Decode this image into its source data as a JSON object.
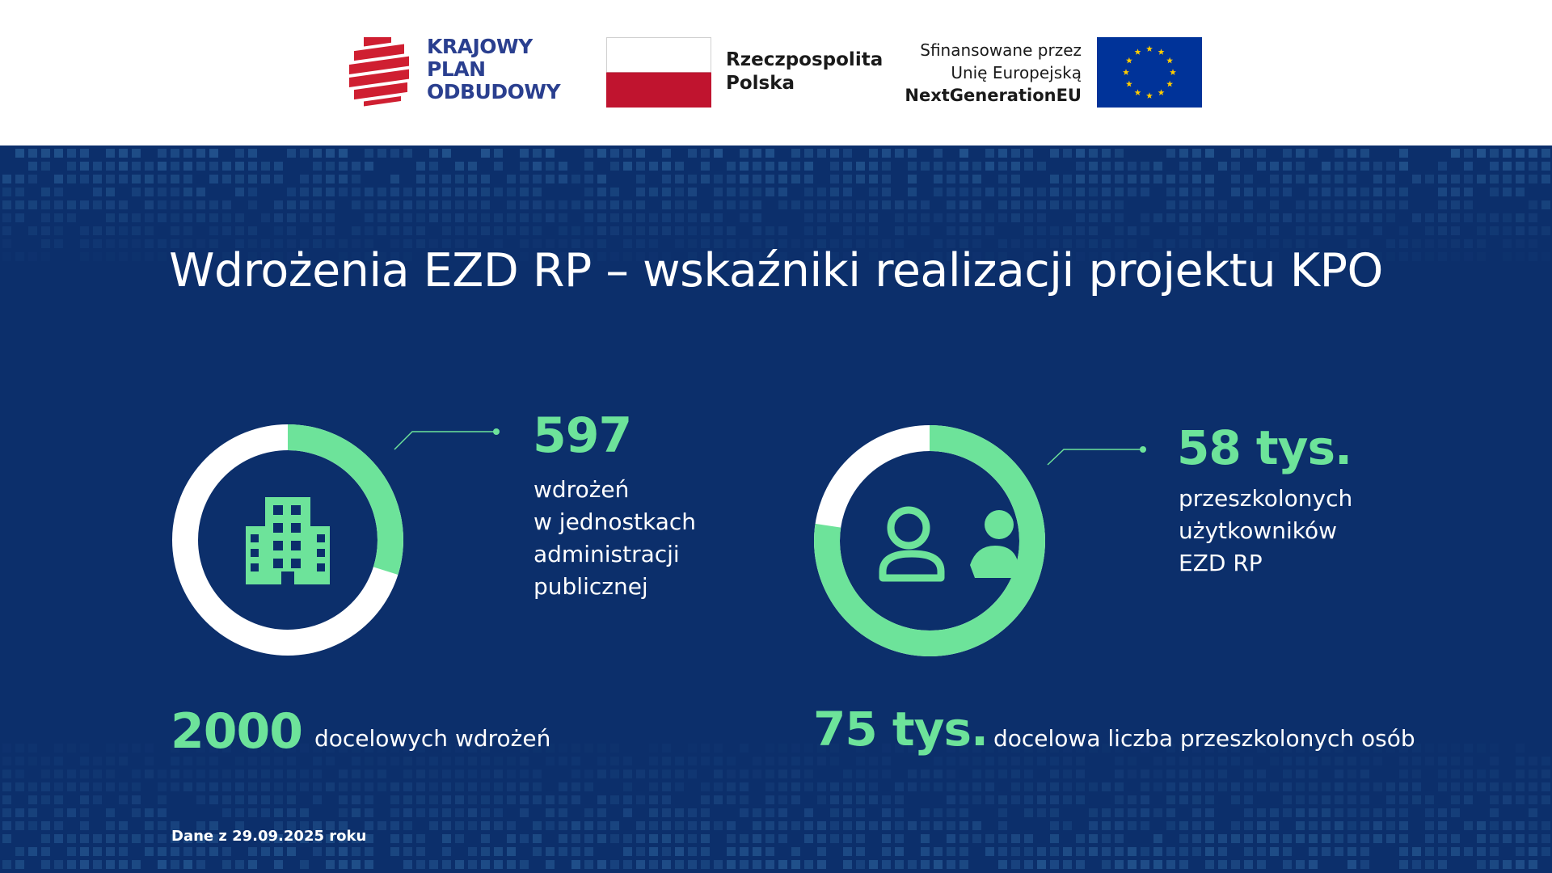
{
  "header": {
    "kpo_logo_lines": [
      "KRAJOWY",
      "PLAN",
      "ODBUDOWY"
    ],
    "rp_lines": [
      "Rzeczpospolita",
      "Polska"
    ],
    "eu_lines": [
      "Sfinansowane przez",
      "Unię Europejską",
      "NextGenerationEU"
    ]
  },
  "title": "Wdrożenia EZD RP –  wskaźniki realizacji projektu KPO",
  "colors": {
    "navy": "#0c2f6b",
    "green": "#6de39a",
    "white": "#ffffff",
    "kpo_red": "#cf1f31",
    "kpo_navy": "#2a3f8f",
    "pl_red": "#c0142f",
    "eu_blue": "#003399",
    "eu_gold": "#ffcc00"
  },
  "chart_data": [
    {
      "type": "pie",
      "value": 597,
      "target": 2000,
      "value_label": "597",
      "value_description_lines": [
        "wdrożeń",
        "w jednostkach",
        "administracji",
        "publicznej"
      ],
      "target_label": "2000",
      "target_description": "docelowych wdrożeń",
      "icon": "building-icon"
    },
    {
      "type": "pie",
      "value": 58,
      "target": 75,
      "value_label": "58 tys.",
      "value_description_lines": [
        "przeszkolonych",
        "użytkowników",
        "EZD RP"
      ],
      "target_label": "75 tys.",
      "target_description": "docelowa liczba przeszkolonych osób",
      "icon": "users-icon"
    }
  ],
  "footnote": "Dane z 29.09.2025 roku"
}
